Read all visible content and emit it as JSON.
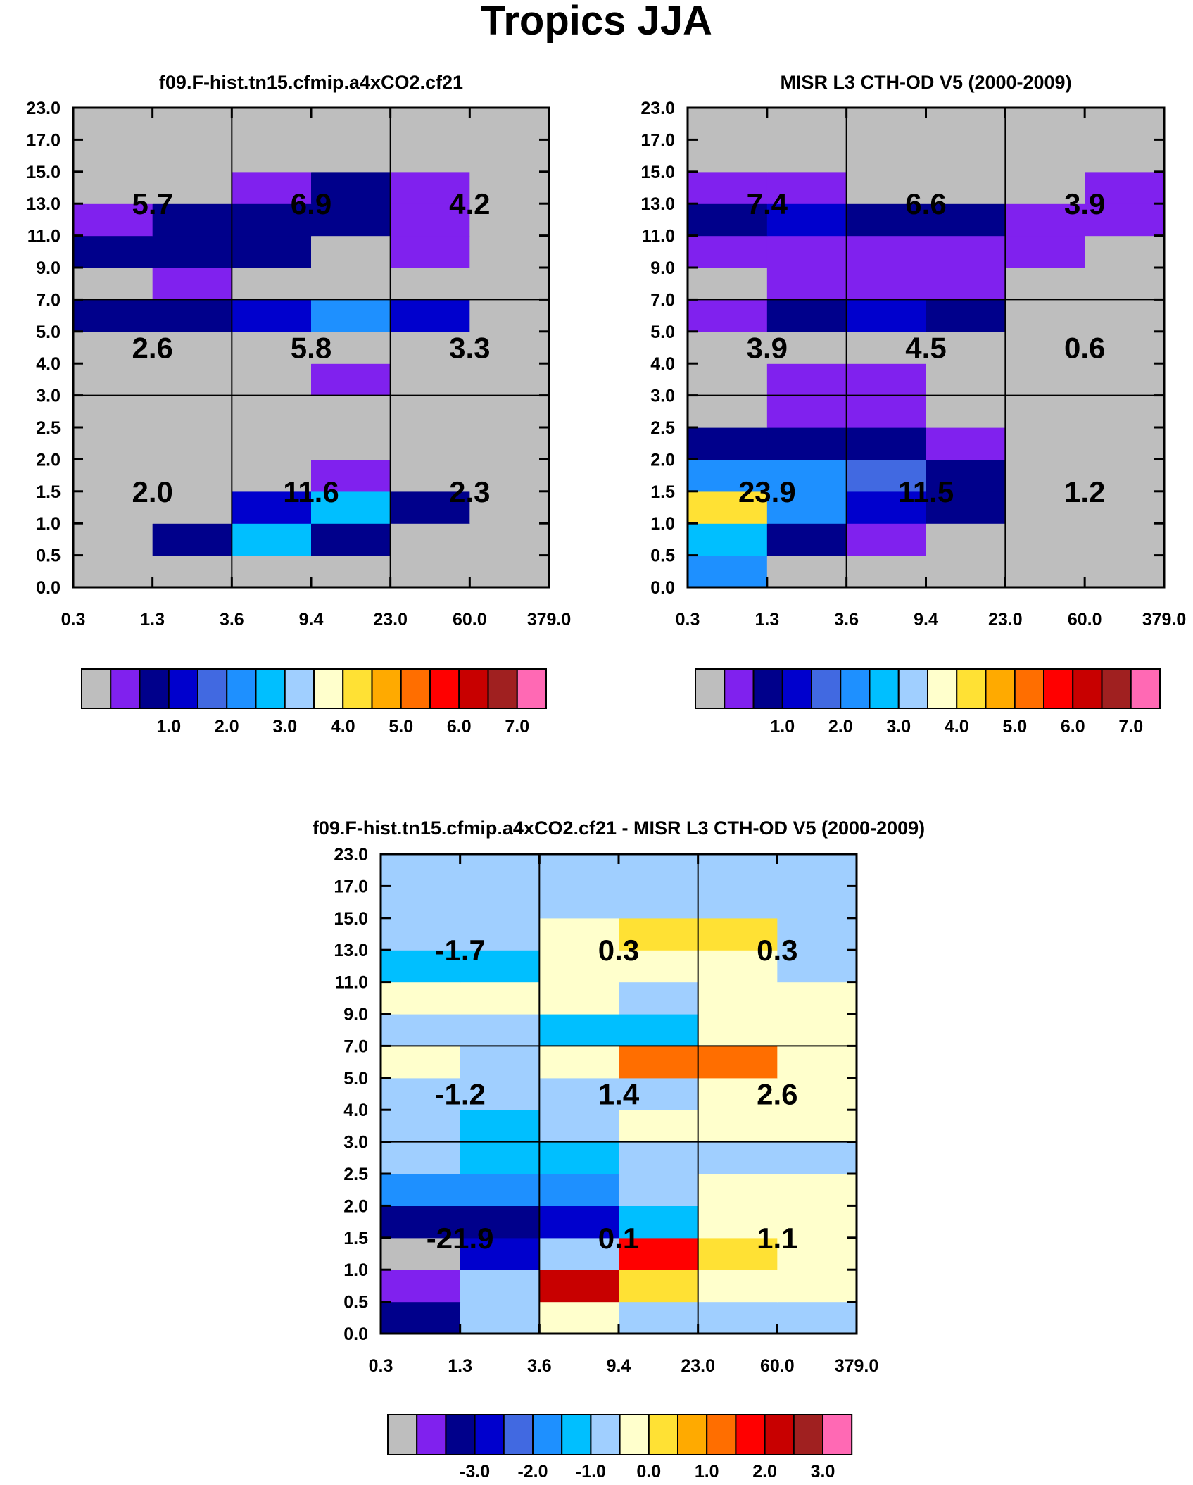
{
  "title": "Tropics JJA",
  "colors": {
    "abs_palette": [
      "#bebebe",
      "#8021ee",
      "#00008b",
      "#0000cd",
      "#4169e1",
      "#1e90ff",
      "#00bfff",
      "#a0cfff",
      "#ffffcc",
      "#ffe134",
      "#ffaa00",
      "#ff6e00",
      "#ff0000",
      "#c80000",
      "#a02020",
      "#ff69b4"
    ],
    "diff_palette": [
      "#bebebe",
      "#8021ee",
      "#00008b",
      "#0000cd",
      "#4169e1",
      "#1e90ff",
      "#00bfff",
      "#a0cfff",
      "#ffffcc",
      "#ffe134",
      "#ffaa00",
      "#ff6e00",
      "#ff0000",
      "#c80000",
      "#a02020",
      "#ff69b4"
    ]
  },
  "chart_data": [
    {
      "type": "heatmap",
      "id": "model",
      "title": "f09.F-hist.tn15.cfmip.a4xCO2.cf21",
      "x_ticks": [
        "0.3",
        "1.3",
        "3.6",
        "9.4",
        "23.0",
        "60.0",
        "379.0"
      ],
      "y_ticks": [
        "0.0",
        "0.5",
        "1.0",
        "1.5",
        "2.0",
        "2.5",
        "3.0",
        "4.0",
        "5.0",
        "7.0",
        "9.0",
        "11.0",
        "13.0",
        "15.0",
        "17.0",
        "23.0"
      ],
      "cell_color_index": [
        [
          0,
          0,
          0,
          0,
          0,
          0
        ],
        [
          0,
          2,
          6,
          2,
          0,
          0
        ],
        [
          0,
          0,
          3,
          6,
          2,
          0
        ],
        [
          0,
          0,
          0,
          1,
          0,
          0
        ],
        [
          0,
          0,
          0,
          0,
          0,
          0
        ],
        [
          0,
          0,
          0,
          0,
          0,
          0
        ],
        [
          0,
          0,
          0,
          1,
          0,
          0
        ],
        [
          0,
          0,
          0,
          0,
          0,
          0
        ],
        [
          2,
          2,
          3,
          5,
          3,
          0
        ],
        [
          0,
          1,
          0,
          0,
          0,
          0
        ],
        [
          2,
          2,
          2,
          0,
          1,
          0
        ],
        [
          1,
          2,
          2,
          2,
          1,
          0
        ],
        [
          0,
          0,
          1,
          2,
          1,
          0
        ],
        [
          0,
          0,
          0,
          0,
          0,
          0
        ],
        [
          0,
          0,
          0,
          0,
          0,
          0
        ]
      ],
      "box_values": [
        [
          "2.0",
          "11.6",
          "2.3"
        ],
        [
          "2.6",
          "5.8",
          "3.3"
        ],
        [
          "5.7",
          "6.9",
          "4.2"
        ]
      ],
      "colorbar_labels": [
        "1.0",
        "2.0",
        "3.0",
        "4.0",
        "5.0",
        "6.0",
        "7.0"
      ]
    },
    {
      "type": "heatmap",
      "id": "obs",
      "title": "MISR L3 CTH-OD V5 (2000-2009)",
      "x_ticks": [
        "0.3",
        "1.3",
        "3.6",
        "9.4",
        "23.0",
        "60.0",
        "379.0"
      ],
      "y_ticks": [
        "0.0",
        "0.5",
        "1.0",
        "1.5",
        "2.0",
        "2.5",
        "3.0",
        "4.0",
        "5.0",
        "7.0",
        "9.0",
        "11.0",
        "13.0",
        "15.0",
        "17.0",
        "23.0"
      ],
      "cell_color_index": [
        [
          5,
          0,
          0,
          0,
          0,
          0
        ],
        [
          6,
          2,
          1,
          0,
          0,
          0
        ],
        [
          9,
          5,
          3,
          2,
          0,
          0
        ],
        [
          5,
          5,
          4,
          2,
          0,
          0
        ],
        [
          2,
          2,
          2,
          1,
          0,
          0
        ],
        [
          0,
          1,
          1,
          0,
          0,
          0
        ],
        [
          0,
          1,
          1,
          0,
          0,
          0
        ],
        [
          0,
          0,
          0,
          0,
          0,
          0
        ],
        [
          1,
          2,
          3,
          2,
          0,
          0
        ],
        [
          0,
          1,
          1,
          1,
          0,
          0
        ],
        [
          1,
          1,
          1,
          1,
          1,
          0
        ],
        [
          2,
          3,
          2,
          2,
          1,
          1
        ],
        [
          1,
          1,
          0,
          0,
          0,
          1
        ],
        [
          0,
          0,
          0,
          0,
          0,
          0
        ],
        [
          0,
          0,
          0,
          0,
          0,
          0
        ]
      ],
      "box_values": [
        [
          "23.9",
          "11.5",
          "1.2"
        ],
        [
          "3.9",
          "4.5",
          "0.6"
        ],
        [
          "7.4",
          "6.6",
          "3.9"
        ]
      ],
      "colorbar_labels": [
        "1.0",
        "2.0",
        "3.0",
        "4.0",
        "5.0",
        "6.0",
        "7.0"
      ]
    },
    {
      "type": "heatmap",
      "id": "diff",
      "title": "f09.F-hist.tn15.cfmip.a4xCO2.cf21 - MISR L3 CTH-OD V5 (2000-2009)",
      "x_ticks": [
        "0.3",
        "1.3",
        "3.6",
        "9.4",
        "23.0",
        "60.0",
        "379.0"
      ],
      "y_ticks": [
        "0.0",
        "0.5",
        "1.0",
        "1.5",
        "2.0",
        "2.5",
        "3.0",
        "4.0",
        "5.0",
        "7.0",
        "9.0",
        "11.0",
        "13.0",
        "15.0",
        "17.0",
        "23.0"
      ],
      "cell_color_index": [
        [
          2,
          7,
          8,
          7,
          7,
          7
        ],
        [
          1,
          7,
          13,
          9,
          8,
          8
        ],
        [
          0,
          3,
          7,
          12,
          9,
          8
        ],
        [
          2,
          2,
          3,
          6,
          8,
          8
        ],
        [
          5,
          5,
          5,
          7,
          8,
          8
        ],
        [
          7,
          6,
          6,
          7,
          7,
          7
        ],
        [
          7,
          6,
          7,
          8,
          8,
          8
        ],
        [
          7,
          7,
          7,
          7,
          8,
          8
        ],
        [
          8,
          7,
          8,
          11,
          11,
          8
        ],
        [
          7,
          7,
          6,
          6,
          8,
          8
        ],
        [
          8,
          8,
          8,
          7,
          8,
          8
        ],
        [
          6,
          6,
          8,
          8,
          8,
          7
        ],
        [
          7,
          7,
          8,
          9,
          9,
          7
        ],
        [
          7,
          7,
          7,
          7,
          7,
          7
        ],
        [
          7,
          7,
          7,
          7,
          7,
          7
        ]
      ],
      "box_values": [
        [
          "-21.9",
          "0.1",
          "1.1"
        ],
        [
          "-1.2",
          "1.4",
          "2.6"
        ],
        [
          "-1.7",
          "0.3",
          "0.3"
        ]
      ],
      "colorbar_labels": [
        "-3.0",
        "-2.0",
        "-1.0",
        "0.0",
        "1.0",
        "2.0",
        "3.0"
      ]
    }
  ]
}
